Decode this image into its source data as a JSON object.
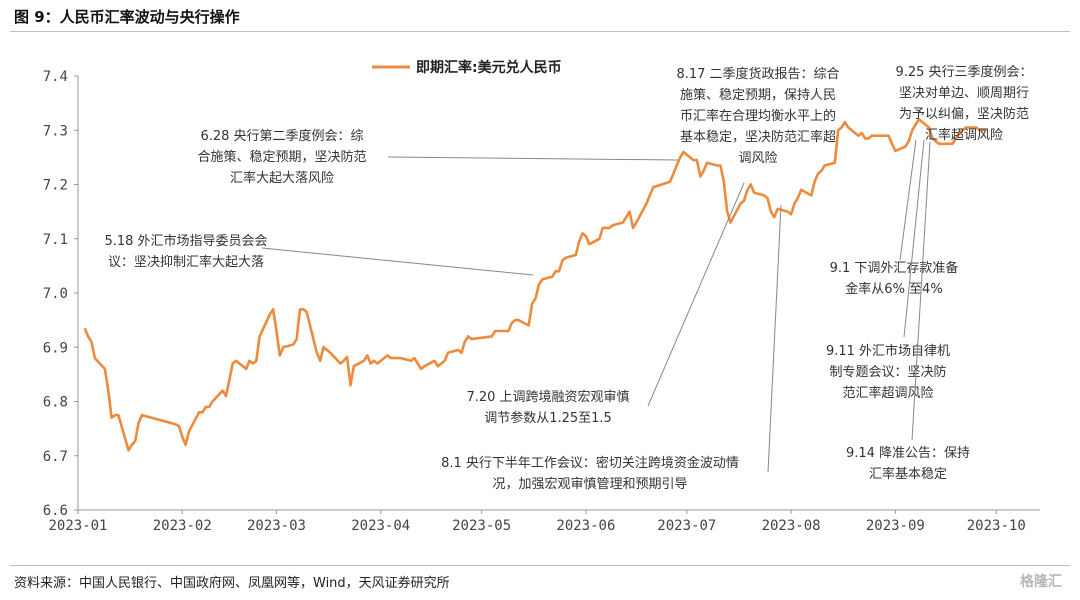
{
  "header": {
    "figure_title": "图 9：人民币汇率波动与央行操作"
  },
  "footer": {
    "source": "资料来源：中国人民银行、中国政府网、凤凰网等，Wind，天风证券研究所",
    "watermark": "格隆汇"
  },
  "colors": {
    "series": "#ED8A3E",
    "leader": "#888888",
    "axis": "#999999"
  },
  "chart_data": {
    "type": "line",
    "title": "",
    "xlabel": "",
    "ylabel": "",
    "ylim": [
      6.6,
      7.4
    ],
    "yticks": [
      "6.6",
      "6.7",
      "6.8",
      "6.9",
      "7.0",
      "7.1",
      "7.2",
      "7.3",
      "7.4"
    ],
    "xlim": [
      "2023-01-01",
      "2023-10-14"
    ],
    "xticks": [
      "2023-01",
      "2023-02",
      "2023-03",
      "2023-04",
      "2023-05",
      "2023-06",
      "2023-07",
      "2023-08",
      "2023-09",
      "2023-10"
    ],
    "grid": false,
    "legend_position": "top-center",
    "series": [
      {
        "name": "即期汇率:美元兑人民币",
        "points": [
          [
            "2023-01-03",
            6.935
          ],
          [
            "2023-01-04",
            6.92
          ],
          [
            "2023-01-05",
            6.91
          ],
          [
            "2023-01-06",
            6.88
          ],
          [
            "2023-01-09",
            6.86
          ],
          [
            "2023-01-10",
            6.82
          ],
          [
            "2023-01-11",
            6.77
          ],
          [
            "2023-01-12",
            6.775
          ],
          [
            "2023-01-13",
            6.775
          ],
          [
            "2023-01-16",
            6.71
          ],
          [
            "2023-01-17",
            6.72
          ],
          [
            "2023-01-18",
            6.727
          ],
          [
            "2023-01-19",
            6.76
          ],
          [
            "2023-01-20",
            6.775
          ],
          [
            "2023-01-30",
            6.758
          ],
          [
            "2023-01-31",
            6.755
          ],
          [
            "2023-02-01",
            6.735
          ],
          [
            "2023-02-02",
            6.72
          ],
          [
            "2023-02-03",
            6.745
          ],
          [
            "2023-02-06",
            6.78
          ],
          [
            "2023-02-07",
            6.78
          ],
          [
            "2023-02-08",
            6.79
          ],
          [
            "2023-02-09",
            6.79
          ],
          [
            "2023-02-10",
            6.8
          ],
          [
            "2023-02-13",
            6.82
          ],
          [
            "2023-02-14",
            6.81
          ],
          [
            "2023-02-15",
            6.84
          ],
          [
            "2023-02-16",
            6.87
          ],
          [
            "2023-02-17",
            6.875
          ],
          [
            "2023-02-20",
            6.86
          ],
          [
            "2023-02-21",
            6.875
          ],
          [
            "2023-02-22",
            6.87
          ],
          [
            "2023-02-23",
            6.875
          ],
          [
            "2023-02-24",
            6.92
          ],
          [
            "2023-02-27",
            6.96
          ],
          [
            "2023-02-28",
            6.97
          ],
          [
            "2023-03-01",
            6.93
          ],
          [
            "2023-03-02",
            6.885
          ],
          [
            "2023-03-03",
            6.9
          ],
          [
            "2023-03-06",
            6.905
          ],
          [
            "2023-03-07",
            6.915
          ],
          [
            "2023-03-08",
            6.97
          ],
          [
            "2023-03-09",
            6.97
          ],
          [
            "2023-03-10",
            6.965
          ],
          [
            "2023-03-13",
            6.89
          ],
          [
            "2023-03-14",
            6.875
          ],
          [
            "2023-03-15",
            6.9
          ],
          [
            "2023-03-16",
            6.895
          ],
          [
            "2023-03-17",
            6.89
          ],
          [
            "2023-03-20",
            6.87
          ],
          [
            "2023-03-21",
            6.875
          ],
          [
            "2023-03-22",
            6.882
          ],
          [
            "2023-03-23",
            6.83
          ],
          [
            "2023-03-24",
            6.865
          ],
          [
            "2023-03-27",
            6.875
          ],
          [
            "2023-03-28",
            6.885
          ],
          [
            "2023-03-29",
            6.87
          ],
          [
            "2023-03-30",
            6.875
          ],
          [
            "2023-03-31",
            6.87
          ],
          [
            "2023-04-03",
            6.885
          ],
          [
            "2023-04-04",
            6.88
          ],
          [
            "2023-04-06",
            6.88
          ],
          [
            "2023-04-07",
            6.88
          ],
          [
            "2023-04-10",
            6.875
          ],
          [
            "2023-04-11",
            6.88
          ],
          [
            "2023-04-12",
            6.87
          ],
          [
            "2023-04-13",
            6.86
          ],
          [
            "2023-04-14",
            6.865
          ],
          [
            "2023-04-17",
            6.875
          ],
          [
            "2023-04-18",
            6.865
          ],
          [
            "2023-04-19",
            6.87
          ],
          [
            "2023-04-20",
            6.875
          ],
          [
            "2023-04-21",
            6.89
          ],
          [
            "2023-04-24",
            6.895
          ],
          [
            "2023-04-25",
            6.89
          ],
          [
            "2023-04-26",
            6.91
          ],
          [
            "2023-04-27",
            6.92
          ],
          [
            "2023-04-28",
            6.915
          ],
          [
            "2023-05-04",
            6.92
          ],
          [
            "2023-05-05",
            6.93
          ],
          [
            "2023-05-08",
            6.93
          ],
          [
            "2023-05-09",
            6.93
          ],
          [
            "2023-05-10",
            6.945
          ],
          [
            "2023-05-11",
            6.95
          ],
          [
            "2023-05-12",
            6.95
          ],
          [
            "2023-05-15",
            6.94
          ],
          [
            "2023-05-16",
            6.98
          ],
          [
            "2023-05-17",
            6.99
          ],
          [
            "2023-05-18",
            7.015
          ],
          [
            "2023-05-19",
            7.025
          ],
          [
            "2023-05-22",
            7.03
          ],
          [
            "2023-05-23",
            7.04
          ],
          [
            "2023-05-24",
            7.04
          ],
          [
            "2023-05-25",
            7.06
          ],
          [
            "2023-05-26",
            7.065
          ],
          [
            "2023-05-29",
            7.07
          ],
          [
            "2023-05-30",
            7.095
          ],
          [
            "2023-05-31",
            7.11
          ],
          [
            "2023-06-01",
            7.105
          ],
          [
            "2023-06-02",
            7.09
          ],
          [
            "2023-06-05",
            7.1
          ],
          [
            "2023-06-06",
            7.12
          ],
          [
            "2023-06-07",
            7.12
          ],
          [
            "2023-06-08",
            7.12
          ],
          [
            "2023-06-09",
            7.125
          ],
          [
            "2023-06-12",
            7.13
          ],
          [
            "2023-06-13",
            7.14
          ],
          [
            "2023-06-14",
            7.15
          ],
          [
            "2023-06-15",
            7.12
          ],
          [
            "2023-06-16",
            7.13
          ],
          [
            "2023-06-19",
            7.165
          ],
          [
            "2023-06-20",
            7.18
          ],
          [
            "2023-06-21",
            7.195
          ],
          [
            "2023-06-26",
            7.205
          ],
          [
            "2023-06-27",
            7.22
          ],
          [
            "2023-06-28",
            7.235
          ],
          [
            "2023-06-29",
            7.25
          ],
          [
            "2023-06-30",
            7.26
          ],
          [
            "2023-07-03",
            7.245
          ],
          [
            "2023-07-04",
            7.245
          ],
          [
            "2023-07-05",
            7.215
          ],
          [
            "2023-07-06",
            7.225
          ],
          [
            "2023-07-07",
            7.24
          ],
          [
            "2023-07-10",
            7.235
          ],
          [
            "2023-07-11",
            7.235
          ],
          [
            "2023-07-12",
            7.205
          ],
          [
            "2023-07-13",
            7.15
          ],
          [
            "2023-07-14",
            7.13
          ],
          [
            "2023-07-17",
            7.165
          ],
          [
            "2023-07-18",
            7.17
          ],
          [
            "2023-07-19",
            7.19
          ],
          [
            "2023-07-20",
            7.2
          ],
          [
            "2023-07-21",
            7.185
          ],
          [
            "2023-07-24",
            7.18
          ],
          [
            "2023-07-25",
            7.175
          ],
          [
            "2023-07-26",
            7.15
          ],
          [
            "2023-07-27",
            7.14
          ],
          [
            "2023-07-28",
            7.155
          ],
          [
            "2023-07-31",
            7.15
          ],
          [
            "2023-08-01",
            7.145
          ],
          [
            "2023-08-02",
            7.165
          ],
          [
            "2023-08-03",
            7.175
          ],
          [
            "2023-08-04",
            7.19
          ],
          [
            "2023-08-07",
            7.18
          ],
          [
            "2023-08-08",
            7.205
          ],
          [
            "2023-08-09",
            7.22
          ],
          [
            "2023-08-10",
            7.225
          ],
          [
            "2023-08-11",
            7.235
          ],
          [
            "2023-08-14",
            7.24
          ],
          [
            "2023-08-15",
            7.3
          ],
          [
            "2023-08-16",
            7.305
          ],
          [
            "2023-08-17",
            7.315
          ],
          [
            "2023-08-18",
            7.305
          ],
          [
            "2023-08-21",
            7.29
          ],
          [
            "2023-08-22",
            7.295
          ],
          [
            "2023-08-23",
            7.285
          ],
          [
            "2023-08-24",
            7.285
          ],
          [
            "2023-08-25",
            7.29
          ],
          [
            "2023-08-28",
            7.29
          ],
          [
            "2023-08-29",
            7.29
          ],
          [
            "2023-08-30",
            7.29
          ],
          [
            "2023-08-31",
            7.275
          ],
          [
            "2023-09-01",
            7.262
          ],
          [
            "2023-09-04",
            7.27
          ],
          [
            "2023-09-05",
            7.28
          ],
          [
            "2023-09-06",
            7.3
          ],
          [
            "2023-09-07",
            7.31
          ],
          [
            "2023-09-08",
            7.32
          ],
          [
            "2023-09-11",
            7.305
          ],
          [
            "2023-09-12",
            7.285
          ],
          [
            "2023-09-13",
            7.28
          ],
          [
            "2023-09-14",
            7.275
          ],
          [
            "2023-09-15",
            7.275
          ],
          [
            "2023-09-18",
            7.275
          ],
          [
            "2023-09-19",
            7.285
          ],
          [
            "2023-09-20",
            7.295
          ],
          [
            "2023-09-21",
            7.3
          ],
          [
            "2023-09-22",
            7.305
          ],
          [
            "2023-09-25",
            7.305
          ],
          [
            "2023-09-26",
            7.3
          ],
          [
            "2023-09-27",
            7.3
          ],
          [
            "2023-09-28",
            7.3
          ]
        ]
      }
    ],
    "annotations": [
      {
        "id": "a0628",
        "lines": [
          "6.28 央行第二季度例会：综",
          "合施策、稳定预期，坚决防范",
          "汇率大起大落风险"
        ],
        "anchor_x": "2023-06-28"
      },
      {
        "id": "a0518",
        "lines": [
          "5.18 外汇市场指导委员会会",
          "议：坚决抑制汇率大起大落"
        ],
        "anchor_x": "2023-05-18"
      },
      {
        "id": "a0817",
        "lines": [
          "8.17 二季度货政报告：综合",
          "施策、稳定预期，保持人民",
          "币汇率在合理均衡水平上的",
          "基本稳定，坚决防范汇率超",
          "调风险"
        ],
        "anchor_x": "2023-08-17"
      },
      {
        "id": "a0925",
        "lines": [
          "9.25 央行三季度例会：",
          "坚决对单边、顺周期行",
          "为予以纠偏，坚决防范",
          "汇率超调风险"
        ],
        "anchor_x": "2023-09-25"
      },
      {
        "id": "a0720",
        "lines": [
          "7.20 上调跨境融资宏观审慎",
          "调节参数从1.25至1.5"
        ],
        "anchor_x": "2023-07-20"
      },
      {
        "id": "a0801",
        "lines": [
          "8.1 央行下半年工作会议：密切关注跨境资金波动情",
          "况，加强宏观审慎管理和预期引导"
        ],
        "anchor_x": "2023-08-01"
      },
      {
        "id": "a0901",
        "lines": [
          "9.1 下调外汇存款准备",
          "金率从6% 至4%"
        ],
        "anchor_x": "2023-09-01"
      },
      {
        "id": "a0911",
        "lines": [
          "9.11 外汇市场自律机",
          "制专题会议：坚决防",
          "范汇率超调风险"
        ],
        "anchor_x": "2023-09-11"
      },
      {
        "id": "a0914",
        "lines": [
          "9.14 降准公告：保持",
          "汇率基本稳定"
        ],
        "anchor_x": "2023-09-14"
      }
    ]
  }
}
